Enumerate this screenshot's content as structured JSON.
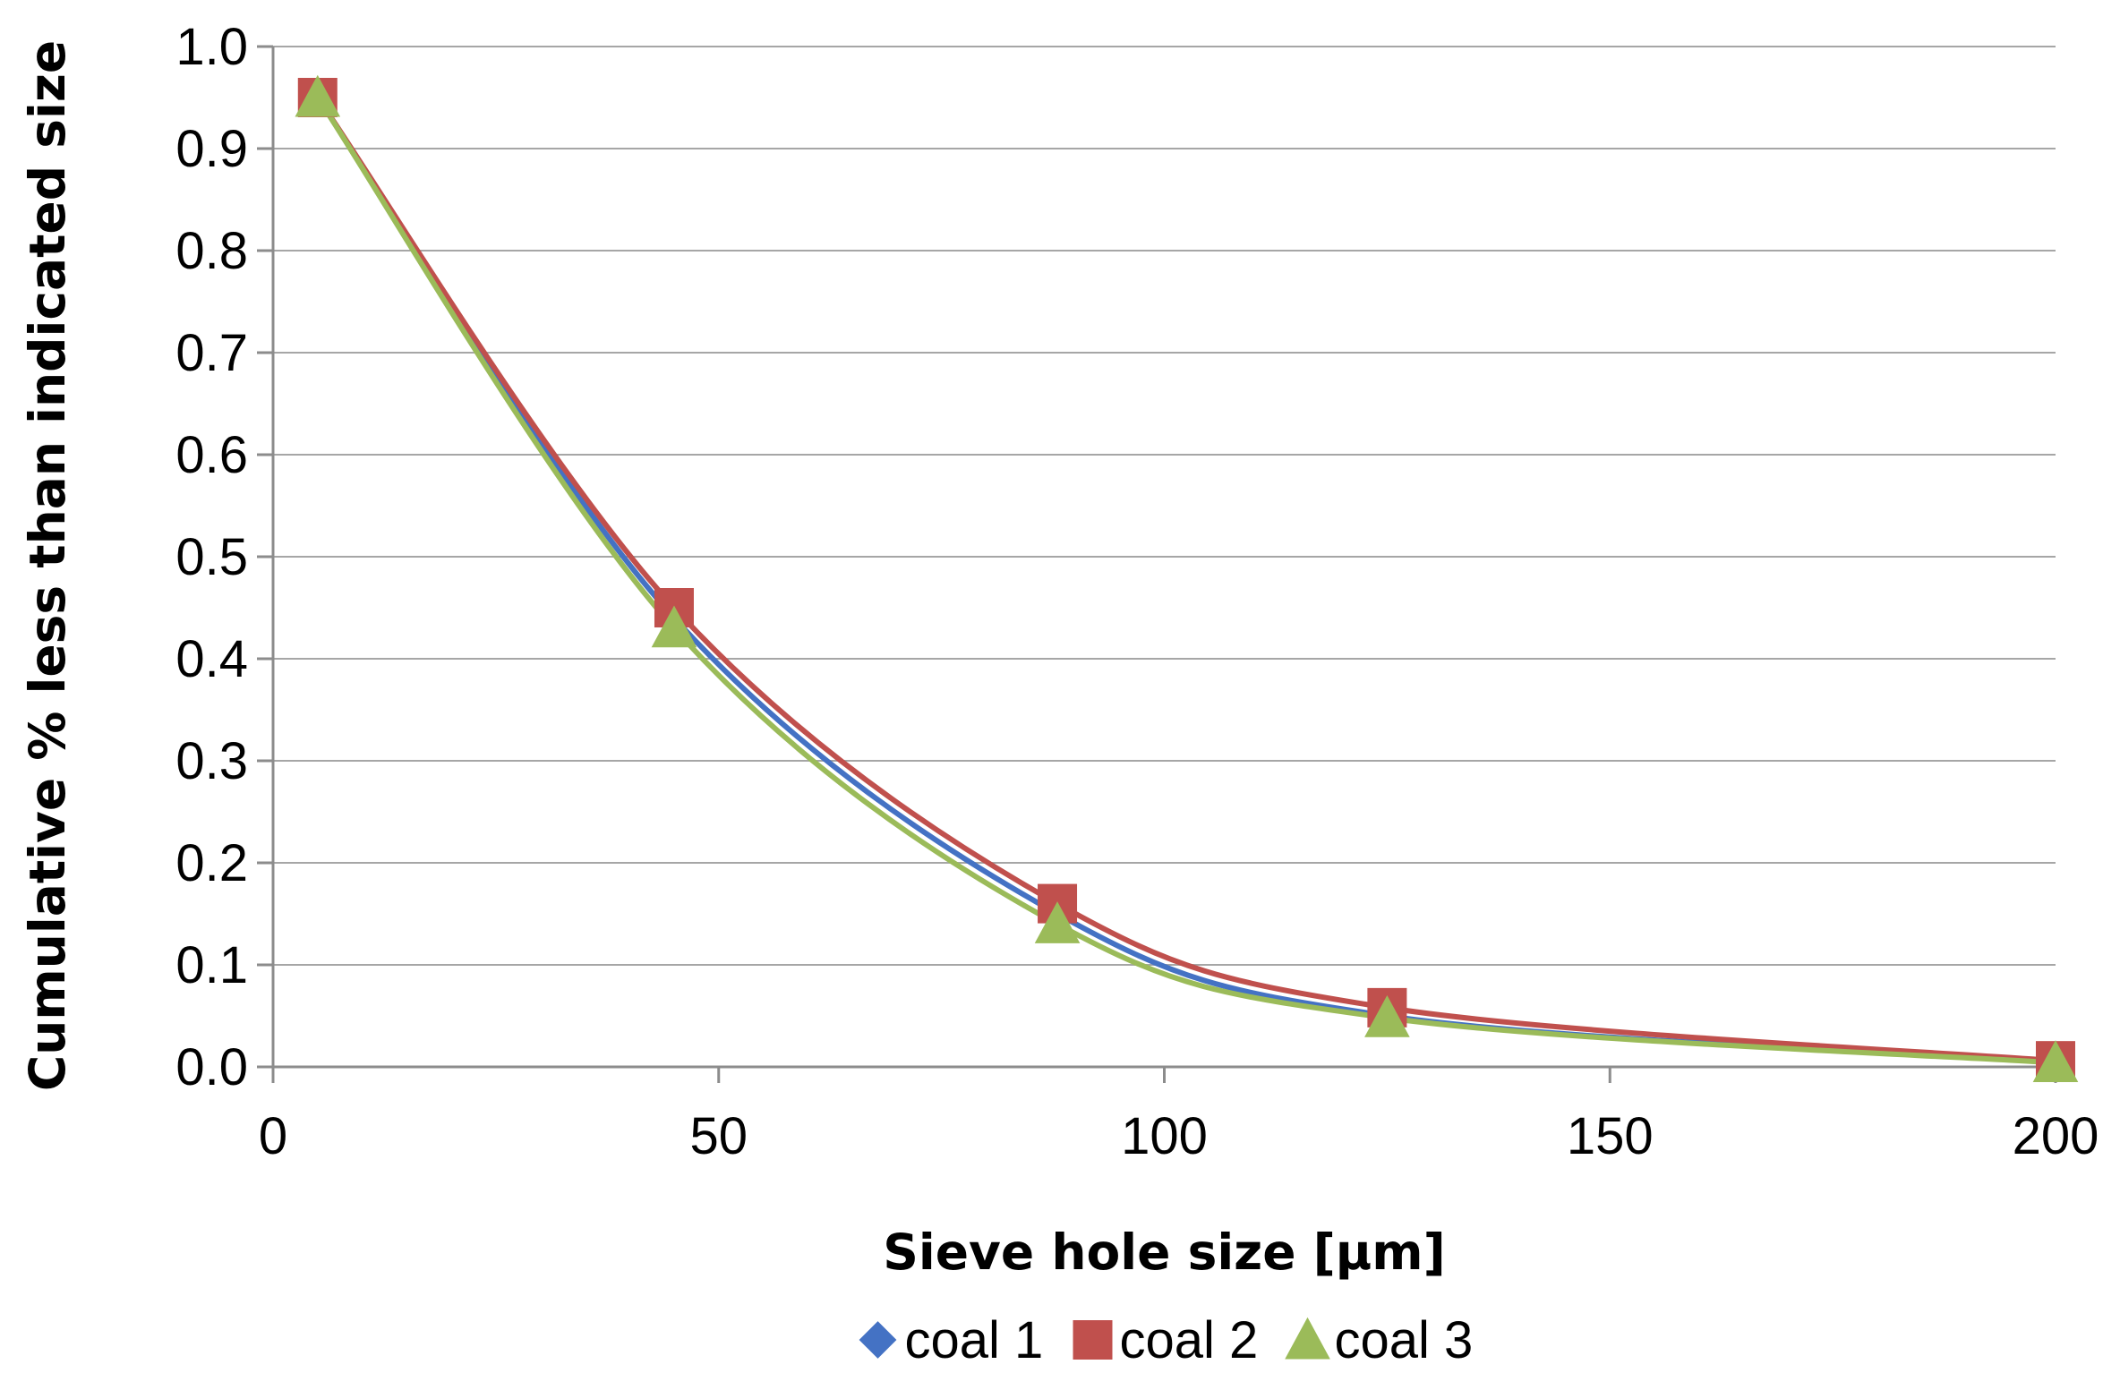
{
  "chart_data": {
    "type": "line",
    "title": "",
    "xlabel": "Sieve hole size  [µm]",
    "ylabel": "Cumulative % less than indicated size",
    "xlim": [
      0,
      200
    ],
    "ylim": [
      0,
      1.0
    ],
    "xticks": [
      0,
      50,
      100,
      150,
      200
    ],
    "xtick_labels": [
      "0",
      "50",
      "100",
      "150",
      "200"
    ],
    "yticks": [
      0,
      0.1,
      0.2,
      0.3,
      0.4,
      0.5,
      0.6,
      0.7,
      0.8,
      0.9,
      1.0
    ],
    "ytick_labels": [
      "0.0",
      "0.1",
      "0.2",
      "0.3",
      "0.4",
      "0.5",
      "0.6",
      "0.7",
      "0.8",
      "0.9",
      "1.0"
    ],
    "grid": "horizontal",
    "legend_position": "bottom",
    "smooth": true,
    "series": [
      {
        "name": "coal 1",
        "color": "#4472C4",
        "marker": "diamond",
        "x": [
          5,
          45,
          88,
          125,
          200
        ],
        "values": [
          0.95,
          0.44,
          0.15,
          0.05,
          0.005
        ]
      },
      {
        "name": "coal 2",
        "color": "#C0504D",
        "marker": "square",
        "x": [
          5,
          45,
          88,
          125,
          200
        ],
        "values": [
          0.95,
          0.45,
          0.16,
          0.058,
          0.006
        ]
      },
      {
        "name": "coal 3",
        "color": "#9BBB59",
        "marker": "triangle",
        "x": [
          5,
          45,
          88,
          125,
          200
        ],
        "values": [
          0.95,
          0.43,
          0.14,
          0.048,
          0.004
        ]
      }
    ]
  }
}
